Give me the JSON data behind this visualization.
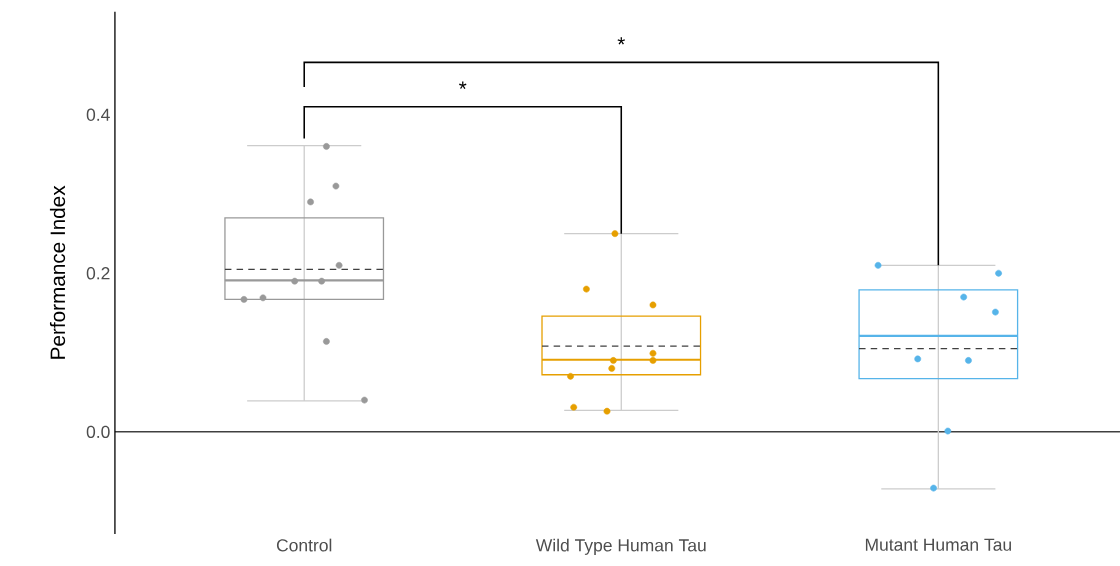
{
  "chart_data": {
    "type": "box",
    "ylabel": "Performance Index",
    "categories": [
      "Control",
      "Wild Type Human Tau",
      "Mutant Human Tau"
    ],
    "colors": [
      "#999999",
      "#e69f00",
      "#56b4e9"
    ],
    "boxes": [
      {
        "low": 0.039,
        "q1": 0.167,
        "median": 0.191,
        "q3": 0.27,
        "high": 0.361,
        "mean": 0.205
      },
      {
        "low": 0.027,
        "q1": 0.072,
        "median": 0.091,
        "q3": 0.146,
        "high": 0.25,
        "mean": 0.108
      },
      {
        "low": -0.072,
        "q1": 0.067,
        "median": 0.121,
        "q3": 0.179,
        "high": 0.21,
        "mean": 0.105
      }
    ],
    "series": [
      {
        "type": "scatter",
        "color": "#999999",
        "x": [
          "Control",
          "Control",
          "Control",
          "Control",
          "Control",
          "Control",
          "Control",
          "Control",
          "Control",
          "Control"
        ],
        "values": [
          0.36,
          0.31,
          0.29,
          0.21,
          0.19,
          0.19,
          0.167,
          0.169,
          0.114,
          0.04
        ]
      },
      {
        "type": "scatter",
        "color": "#e69f00",
        "x": [
          "Wild Type Human Tau",
          "Wild Type Human Tau",
          "Wild Type Human Tau",
          "Wild Type Human Tau",
          "Wild Type Human Tau",
          "Wild Type Human Tau",
          "Wild Type Human Tau",
          "Wild Type Human Tau",
          "Wild Type Human Tau",
          "Wild Type Human Tau"
        ],
        "values": [
          0.25,
          0.18,
          0.16,
          0.099,
          0.09,
          0.09,
          0.08,
          0.07,
          0.031,
          0.026
        ]
      },
      {
        "type": "scatter",
        "color": "#56b4e9",
        "x": [
          "Mutant Human Tau",
          "Mutant Human Tau",
          "Mutant Human Tau",
          "Mutant Human Tau",
          "Mutant Human Tau",
          "Mutant Human Tau",
          "Mutant Human Tau",
          "Mutant Human Tau"
        ],
        "values": [
          0.21,
          0.2,
          0.17,
          0.151,
          0.092,
          0.09,
          0.001,
          -0.071
        ]
      }
    ],
    "ref_lines": [
      {
        "axis": "y",
        "value": 0,
        "color": "#000000"
      }
    ],
    "annotations": [
      "*",
      "*"
    ],
    "ylim": [
      -0.129,
      0.53
    ],
    "yticks": [
      {
        "value": 0,
        "label": "0.0"
      },
      0.2,
      0.4
    ],
    "grid": false
  }
}
